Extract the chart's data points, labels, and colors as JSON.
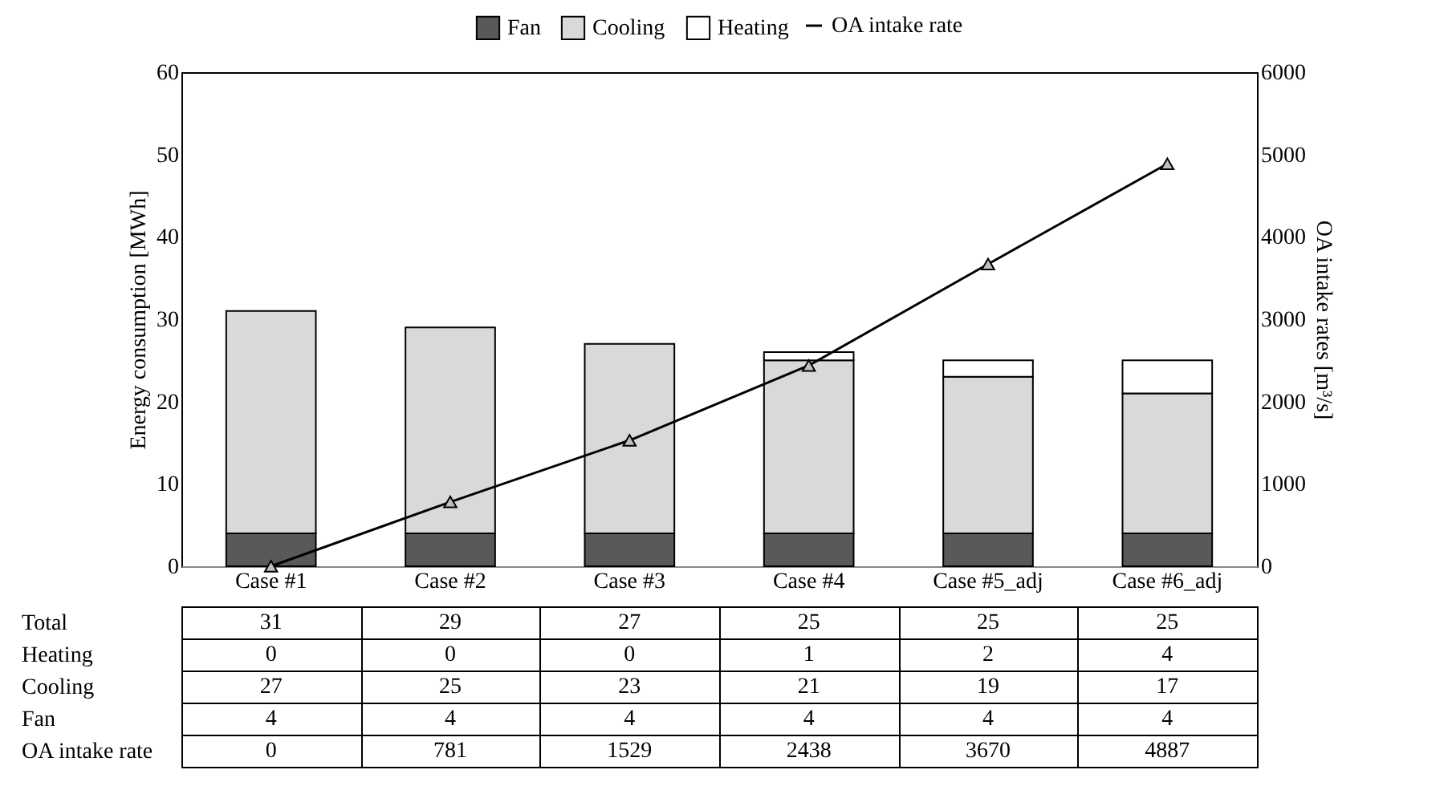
{
  "chart_data": {
    "type": "bar",
    "stacked": true,
    "categories": [
      "Case #1",
      "Case #2",
      "Case #3",
      "Case #4",
      "Case #5_adj",
      "Case #6_adj"
    ],
    "ylabel": "Energy consumption [MWh]",
    "y2label": "OA intake rates [m³/s]",
    "ylim": [
      0,
      60
    ],
    "yticks": [
      0,
      10,
      20,
      30,
      40,
      50,
      60
    ],
    "y2lim": [
      0,
      6000
    ],
    "y2ticks": [
      0,
      1000,
      2000,
      3000,
      4000,
      5000,
      6000
    ],
    "series": [
      {
        "name": "Fan",
        "color": "#595959",
        "values": [
          4,
          4,
          4,
          4,
          4,
          4
        ]
      },
      {
        "name": "Cooling",
        "color": "#d9d9d9",
        "values": [
          27,
          25,
          23,
          21,
          19,
          17
        ]
      },
      {
        "name": "Heating",
        "color": "#ffffff",
        "values": [
          0,
          0,
          0,
          1,
          2,
          4
        ]
      },
      {
        "name": "OA intake rate",
        "type": "line",
        "axis": "y2",
        "color": "#000000",
        "values": [
          0,
          781,
          1529,
          2438,
          3670,
          4887
        ]
      }
    ],
    "totals": [
      "31",
      "29",
      "27",
      "25",
      "25",
      "25"
    ],
    "annotations": [
      "Total"
    ],
    "data_labels": true,
    "marker": "triangle",
    "legend": "top",
    "grid": false
  }
}
